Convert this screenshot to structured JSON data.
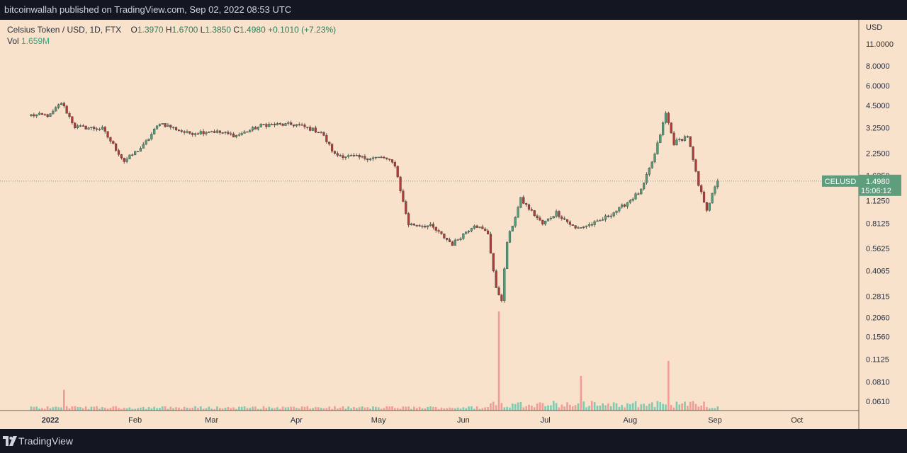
{
  "header": {
    "publisher": "bitcoinwallah published on TradingView.com, Sep 02, 2022 08:53 UTC"
  },
  "footer": {
    "brand": "TradingView"
  },
  "legend": {
    "symbol": "Celsius Token / USD, 1D, FTX",
    "o_label": "O",
    "o": "1.3970",
    "h_label": "H",
    "h": "1.6700",
    "l_label": "L",
    "l": "1.3850",
    "c_label": "C",
    "c": "1.4980",
    "change": "+0.1010 (+7.23%)",
    "vol_label": "Vol",
    "vol": "1.659M"
  },
  "price_badge": {
    "ticker": "CELUSD",
    "price": "1.4980",
    "countdown": "15:06:12"
  },
  "colors": {
    "up": "#4f9e78",
    "down": "#b53a33",
    "vol_up": "#7fcab0",
    "vol_down": "#f19c95",
    "bg": "#f8e2cc",
    "badge": "#5f9e7d"
  },
  "chart_data": {
    "type": "candlestick",
    "title": "Celsius Token / USD, 1D, FTX",
    "y_scale": "log",
    "y_unit": "USD",
    "y_ticks": [
      "11.0000",
      "8.0000",
      "6.0000",
      "4.5000",
      "3.2500",
      "2.2500",
      "1.6250",
      "1.1250",
      "0.8125",
      "0.5625",
      "0.4065",
      "0.2815",
      "0.2060",
      "0.1560",
      "0.1125",
      "0.0810",
      "0.0610"
    ],
    "x_ticks": [
      "2022",
      "Feb",
      "Mar",
      "Apr",
      "May",
      "Jun",
      "Jul",
      "Aug",
      "Sep",
      "Oct"
    ],
    "key_points": [
      {
        "date": "2021-12-25",
        "close": 3.9
      },
      {
        "date": "2022-01-01",
        "close": 3.9
      },
      {
        "date": "2022-01-05",
        "close": 4.7
      },
      {
        "date": "2022-01-10",
        "close": 3.3
      },
      {
        "date": "2022-01-20",
        "close": 3.2
      },
      {
        "date": "2022-01-28",
        "close": 2.0
      },
      {
        "date": "2022-02-04",
        "close": 2.5
      },
      {
        "date": "2022-02-10",
        "close": 3.5
      },
      {
        "date": "2022-02-20",
        "close": 3.0
      },
      {
        "date": "2022-03-01",
        "close": 3.1
      },
      {
        "date": "2022-03-10",
        "close": 2.9
      },
      {
        "date": "2022-03-20",
        "close": 3.4
      },
      {
        "date": "2022-04-01",
        "close": 3.4
      },
      {
        "date": "2022-04-10",
        "close": 3.05
      },
      {
        "date": "2022-04-15",
        "close": 2.2
      },
      {
        "date": "2022-04-25",
        "close": 2.1
      },
      {
        "date": "2022-05-03",
        "close": 2.1
      },
      {
        "date": "2022-05-07",
        "close": 1.9
      },
      {
        "date": "2022-05-10",
        "close": 1.1
      },
      {
        "date": "2022-05-12",
        "close": 0.8
      },
      {
        "date": "2022-05-20",
        "close": 0.78
      },
      {
        "date": "2022-05-28",
        "close": 0.6
      },
      {
        "date": "2022-06-05",
        "close": 0.8
      },
      {
        "date": "2022-06-10",
        "close": 0.7
      },
      {
        "date": "2022-06-13",
        "close": 0.31
      },
      {
        "date": "2022-06-15",
        "close": 0.27
      },
      {
        "date": "2022-06-17",
        "close": 0.62
      },
      {
        "date": "2022-06-22",
        "close": 1.15
      },
      {
        "date": "2022-06-30",
        "close": 0.8
      },
      {
        "date": "2022-07-05",
        "close": 0.95
      },
      {
        "date": "2022-07-12",
        "close": 0.75
      },
      {
        "date": "2022-07-20",
        "close": 0.82
      },
      {
        "date": "2022-07-28",
        "close": 1.0
      },
      {
        "date": "2022-08-05",
        "close": 1.3
      },
      {
        "date": "2022-08-10",
        "close": 2.2
      },
      {
        "date": "2022-08-14",
        "close": 4.0
      },
      {
        "date": "2022-08-17",
        "close": 2.6
      },
      {
        "date": "2022-08-22",
        "close": 2.9
      },
      {
        "date": "2022-08-26",
        "close": 1.4
      },
      {
        "date": "2022-08-29",
        "close": 1.0
      },
      {
        "date": "2022-09-02",
        "close": 1.498
      }
    ],
    "volume_spikes": [
      {
        "date": "2022-06-14",
        "vol_rel": 1.0
      },
      {
        "date": "2022-08-15",
        "vol_rel": 0.5
      },
      {
        "date": "2022-07-14",
        "vol_rel": 0.35
      },
      {
        "date": "2022-01-06",
        "vol_rel": 0.21
      }
    ],
    "current_price": 1.498
  }
}
